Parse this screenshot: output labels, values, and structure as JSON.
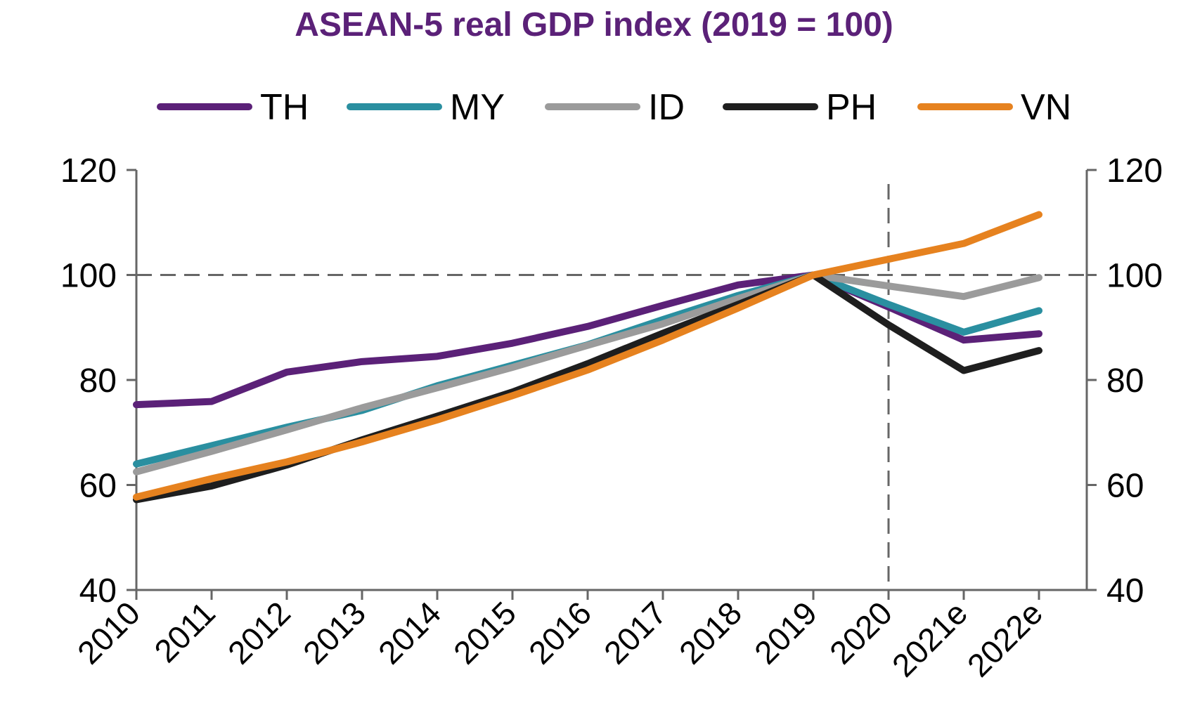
{
  "chart_data": {
    "type": "line",
    "title": "ASEAN-5 real GDP index (2019 = 100)",
    "xlabel": "",
    "ylabel": "",
    "categories": [
      "2010",
      "2011",
      "2012",
      "2013",
      "2014",
      "2015",
      "2016",
      "2017",
      "2018",
      "2019",
      "2020",
      "2021e",
      "2022e"
    ],
    "ylim": [
      40,
      120
    ],
    "yticks": [
      40,
      60,
      80,
      100,
      120
    ],
    "right_axis": true,
    "legend_position": "top",
    "reference_lines": {
      "horizontal_y": 100,
      "vertical_x": "2020",
      "style": "dashed"
    },
    "series": [
      {
        "name": "TH",
        "color": "#5b2178",
        "values": [
          75.3,
          75.9,
          81.5,
          83.5,
          84.5,
          87.0,
          90.2,
          94.2,
          98.1,
          100,
          93.9,
          87.6,
          88.8
        ]
      },
      {
        "name": "MY",
        "color": "#2a8fa0",
        "values": [
          64.0,
          67.5,
          71.0,
          74.2,
          78.9,
          82.8,
          86.7,
          91.5,
          96.1,
          100,
          94.4,
          89.1,
          93.2
        ]
      },
      {
        "name": "ID",
        "color": "#9b9b9b",
        "values": [
          62.5,
          66.4,
          70.5,
          74.7,
          78.5,
          82.4,
          86.6,
          90.7,
          95.5,
          100,
          97.9,
          95.9,
          99.5
        ]
      },
      {
        "name": "PH",
        "color": "#1e1e1e",
        "values": [
          57.2,
          59.8,
          63.8,
          68.6,
          73.1,
          77.7,
          83.1,
          88.9,
          94.4,
          100,
          90.5,
          81.8,
          85.6
        ]
      },
      {
        "name": "VN",
        "color": "#e6821f",
        "values": [
          57.7,
          61.2,
          64.4,
          68.2,
          72.4,
          77.0,
          81.9,
          87.6,
          93.7,
          100,
          103.0,
          106.0,
          111.5
        ]
      }
    ]
  }
}
